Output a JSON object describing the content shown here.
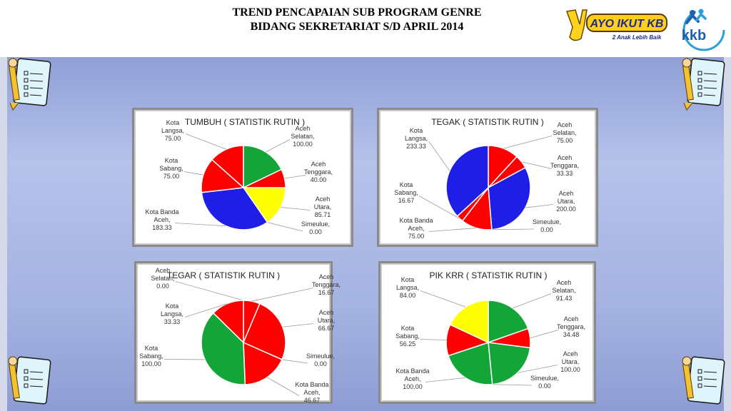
{
  "header": {
    "line1": "TREND PENCAPAIAN SUB PROGRAM GENRE",
    "line2": "BIDANG SEKRETARIAT S/D  APRIL 2014"
  },
  "logos": {
    "ayo_text": "AYO IKUT KB",
    "ayo_sub": "2 Anak Lebih Baik",
    "kkb_text": "kkb"
  },
  "colors": {
    "red": "#ff0000",
    "green": "#13a538",
    "yellow": "#ffff00",
    "blue": "#1e1ee6"
  },
  "chart_data": [
    {
      "type": "pie",
      "title": "TUMBUH ( STATISTIK RUTIN )",
      "slices": [
        {
          "label": "Aceh Selatan",
          "value": 100.0,
          "text": "100.00",
          "color": "green"
        },
        {
          "label": "Aceh Tenggara",
          "value": 40.0,
          "text": "40.00",
          "color": "red"
        },
        {
          "label": "Aceh Utara",
          "value": 85.71,
          "text": "85.71",
          "color": "yellow"
        },
        {
          "label": "Simeulue",
          "value": 0.0,
          "text": "0.00",
          "color": "green"
        },
        {
          "label": "Kota Banda Aceh",
          "value": 183.33,
          "text": "183.33",
          "color": "blue"
        },
        {
          "label": "Kota Sabang",
          "value": 75.0,
          "text": "75.00",
          "color": "red"
        },
        {
          "label": "Kota Langsa",
          "value": 75.0,
          "text": "75.00",
          "color": "red"
        }
      ]
    },
    {
      "type": "pie",
      "title": "TEGAK ( STATISTIK RUTIN )",
      "slices": [
        {
          "label": "Aceh Selatan",
          "value": 75.0,
          "text": "75.00",
          "color": "red"
        },
        {
          "label": "Aceh Tenggara",
          "value": 33.33,
          "text": "33.33",
          "color": "red"
        },
        {
          "label": "Aceh Utara",
          "value": 200.0,
          "text": "200.00",
          "color": "blue"
        },
        {
          "label": "Simeulue",
          "value": 0.0,
          "text": "0.00",
          "color": "blue"
        },
        {
          "label": "Kota Banda Aceh",
          "value": 75.0,
          "text": "75.00",
          "color": "red"
        },
        {
          "label": "Kota Sabang",
          "value": 16.67,
          "text": "16.67",
          "color": "red"
        },
        {
          "label": "Kota Langsa",
          "value": 233.33,
          "text": "233.33",
          "color": "blue"
        }
      ]
    },
    {
      "type": "pie",
      "title": "TEGAR ( STATISTIK RUTIN )",
      "slices": [
        {
          "label": "Aceh Selatan",
          "value": 0.0,
          "text": "0.00",
          "color": "red"
        },
        {
          "label": "Aceh Tenggara",
          "value": 16.67,
          "text": "16.67",
          "color": "red"
        },
        {
          "label": "Aceh Utara",
          "value": 66.67,
          "text": "66.67",
          "color": "red"
        },
        {
          "label": "Simeulue",
          "value": 0.0,
          "text": "0.00",
          "color": "red"
        },
        {
          "label": "Kota Banda Aceh",
          "value": 46.67,
          "text": "46.67",
          "color": "red"
        },
        {
          "label": "Kota Sabang",
          "value": 100.0,
          "text": "100.00",
          "color": "green"
        },
        {
          "label": "Kota Langsa",
          "value": 33.33,
          "text": "33.33",
          "color": "red"
        }
      ]
    },
    {
      "type": "pie",
      "title": "PIK KRR ( STATISTIK RUTIN )",
      "slices": [
        {
          "label": "Aceh Selatan",
          "value": 91.43,
          "text": "91.43",
          "color": "green"
        },
        {
          "label": "Aceh Tenggara",
          "value": 34.48,
          "text": "34.48",
          "color": "red"
        },
        {
          "label": "Aceh Utara",
          "value": 100.0,
          "text": "100.00",
          "color": "green"
        },
        {
          "label": "Simeulue",
          "value": 0.0,
          "text": "0.00",
          "color": "green"
        },
        {
          "label": "Kota Banda Aceh",
          "value": 100.0,
          "text": "100.00",
          "color": "green"
        },
        {
          "label": "Kota Sabang",
          "value": 56.25,
          "text": "56.25",
          "color": "red"
        },
        {
          "label": "Kota Langsa",
          "value": 84.0,
          "text": "84.00",
          "color": "yellow"
        }
      ]
    }
  ]
}
